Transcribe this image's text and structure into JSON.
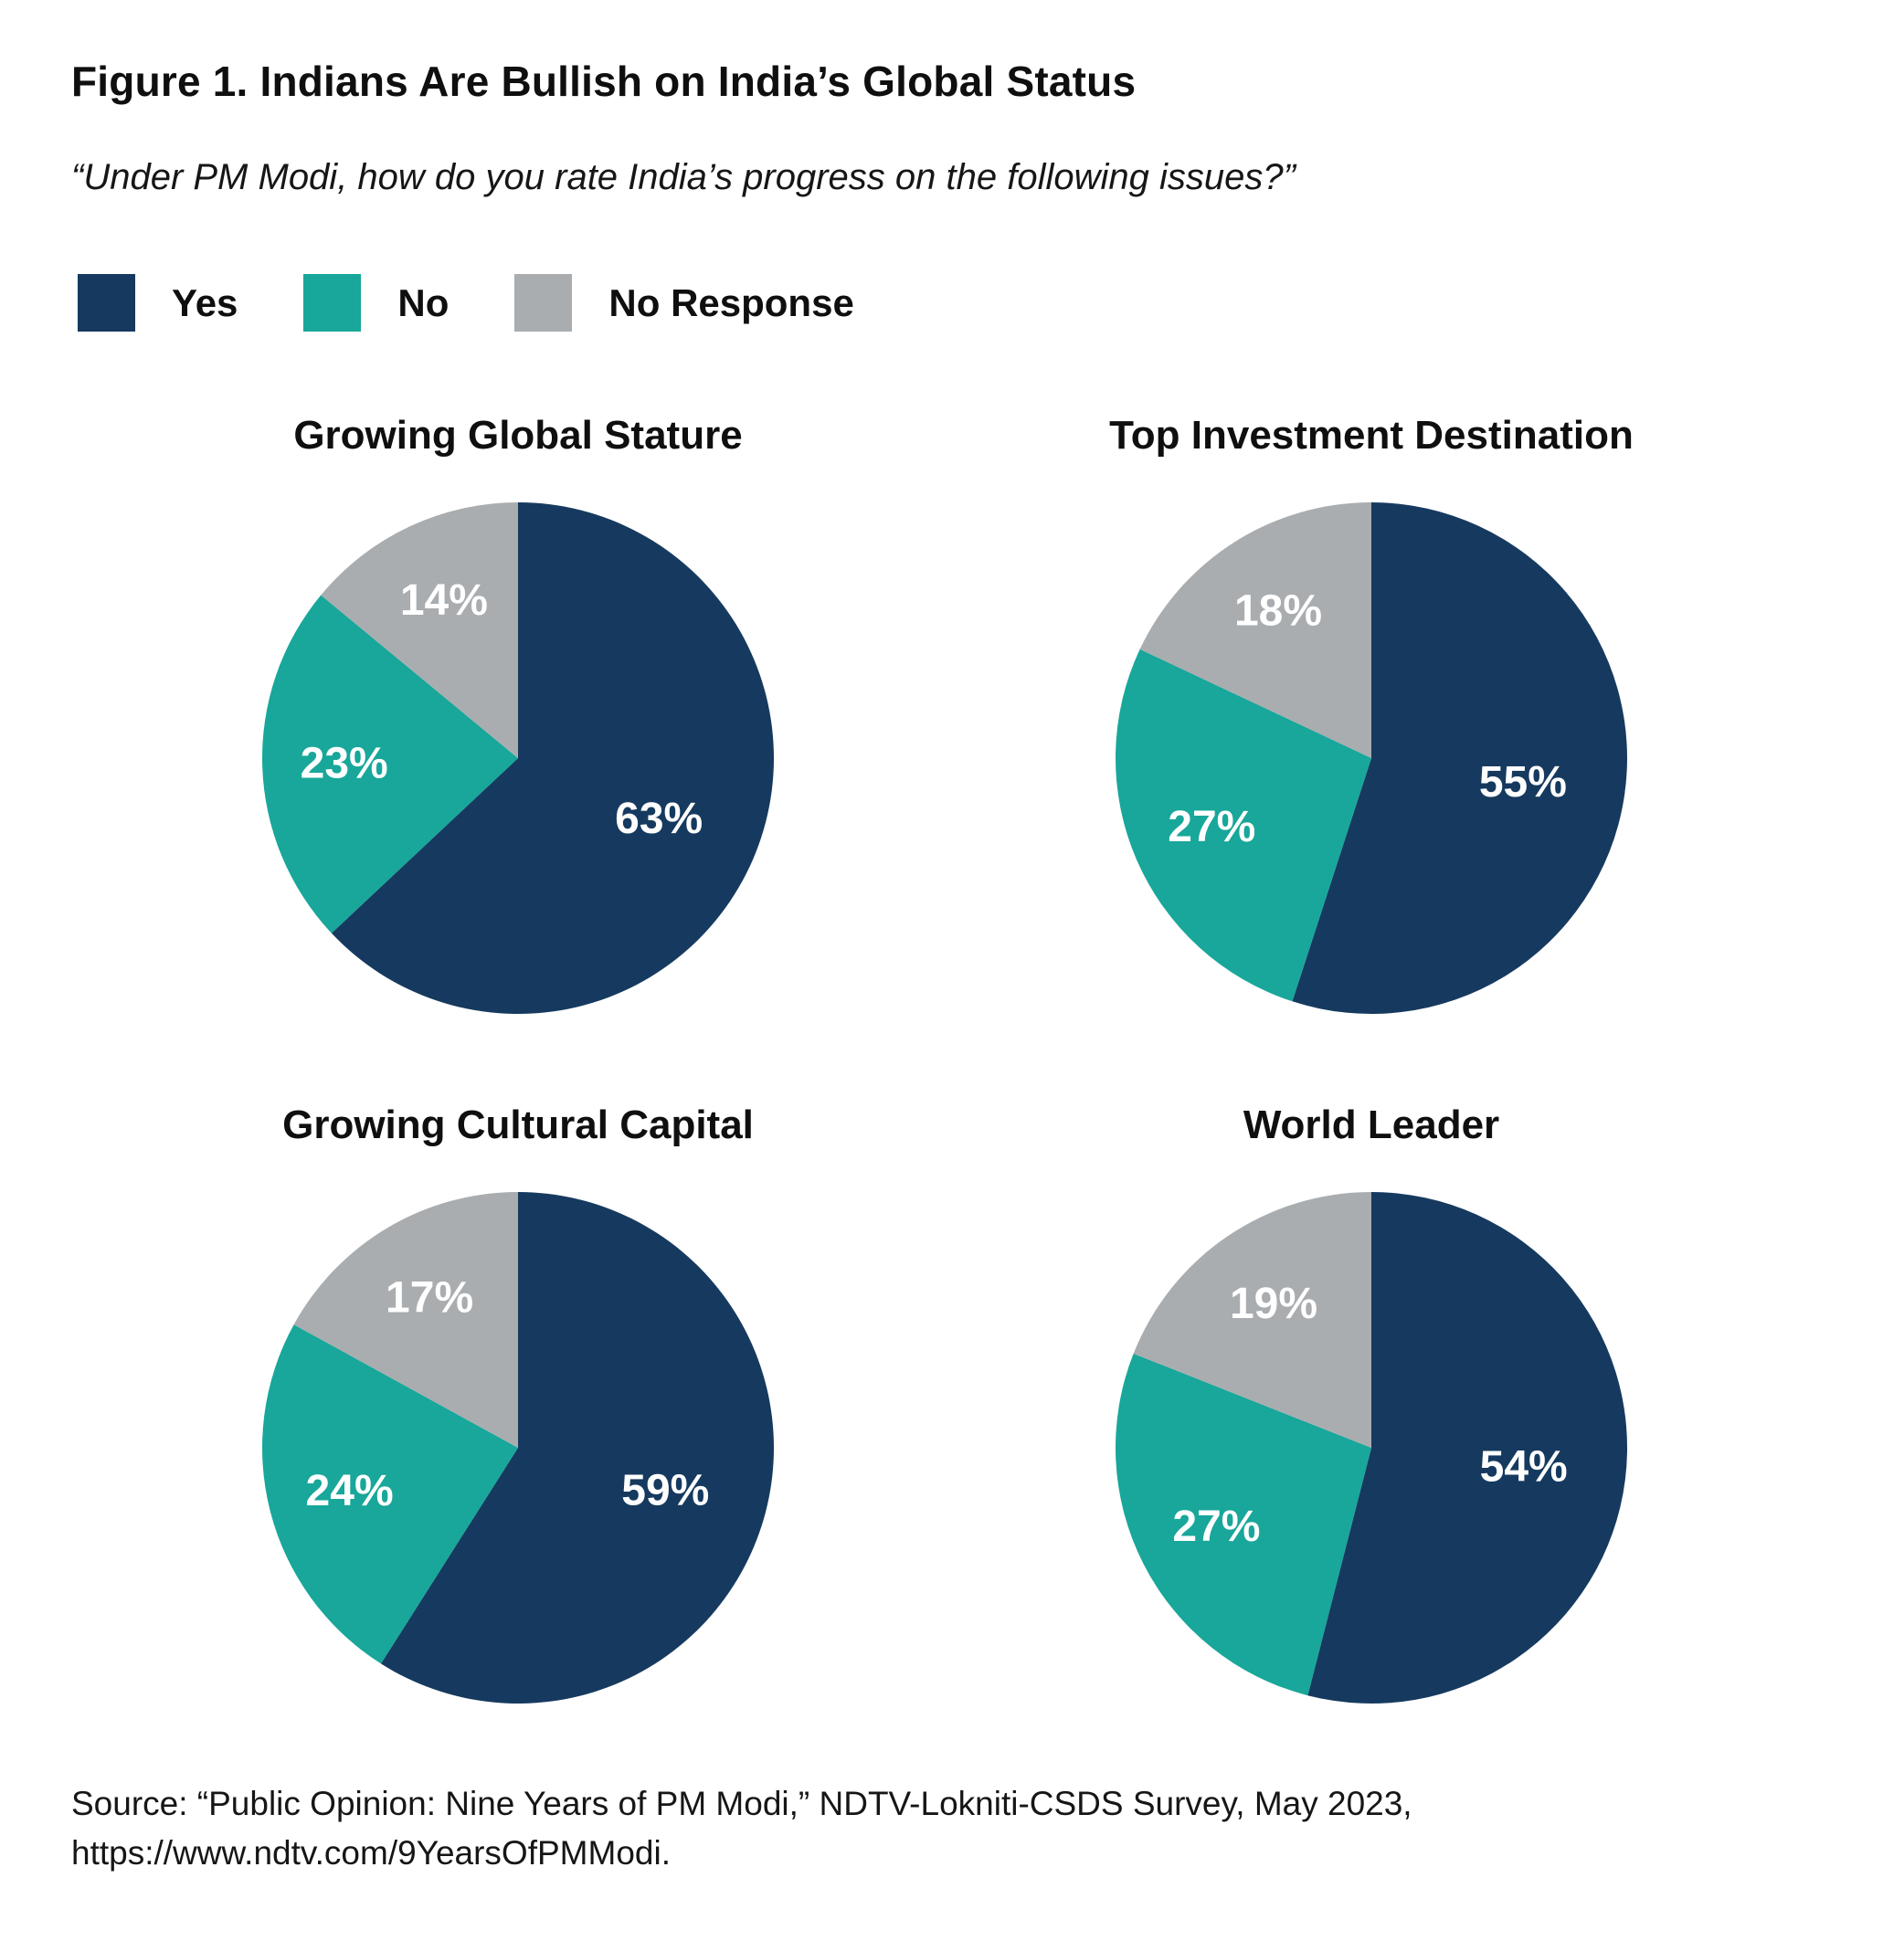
{
  "header": {
    "title": "Figure 1. Indians Are Bullish on India’s Global Status",
    "subtitle": "“Under PM Modi, how do you rate India’s progress on the following issues?”"
  },
  "colors": {
    "yes": "#163a5f",
    "no": "#18a79a",
    "no_response": "#a9adb0",
    "slice_label_text": "#ffffff",
    "background": "#ffffff",
    "text": "#0f0f0f"
  },
  "legend": {
    "position": "top-left",
    "items": [
      {
        "label": "Yes",
        "color": "#163a5f"
      },
      {
        "label": "No",
        "color": "#18a79a"
      },
      {
        "label": "No Response",
        "color": "#a9adb0"
      }
    ]
  },
  "chart_data": [
    {
      "type": "pie",
      "title": "Growing Global Stature",
      "categories": [
        "Yes",
        "No",
        "No Response"
      ],
      "values": [
        63,
        23,
        14
      ],
      "labels": [
        "63%",
        "23%",
        "14%"
      ],
      "start_angle": "12-oclock",
      "direction": "clockwise"
    },
    {
      "type": "pie",
      "title": "Top Investment Destination",
      "categories": [
        "Yes",
        "No",
        "No Response"
      ],
      "values": [
        55,
        27,
        18
      ],
      "labels": [
        "55%",
        "27%",
        "18%"
      ],
      "start_angle": "12-oclock",
      "direction": "clockwise"
    },
    {
      "type": "pie",
      "title": "Growing Cultural Capital",
      "categories": [
        "Yes",
        "No",
        "No Response"
      ],
      "values": [
        59,
        24,
        17
      ],
      "labels": [
        "59%",
        "24%",
        "17%"
      ],
      "start_angle": "12-oclock",
      "direction": "clockwise"
    },
    {
      "type": "pie",
      "title": "World Leader",
      "categories": [
        "Yes",
        "No",
        "No Response"
      ],
      "values": [
        54,
        27,
        19
      ],
      "labels": [
        "54%",
        "27%",
        "19%"
      ],
      "start_angle": "12-oclock",
      "direction": "clockwise"
    }
  ],
  "source": {
    "line1": "Source: “Public Opinion: Nine Years of PM Modi,” NDTV-Lokniti-CSDS Survey, May 2023,",
    "line2": "https://www.ndtv.com/9YearsOfPMModi."
  }
}
